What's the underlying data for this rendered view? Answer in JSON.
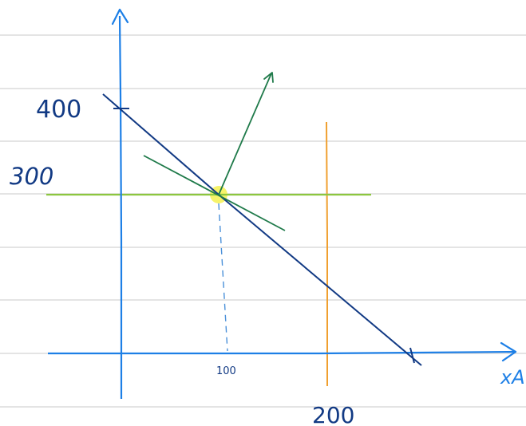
{
  "sketch": {
    "labels": {
      "y_400": "400",
      "y_300": "300",
      "x_100": "100",
      "x_200": "200",
      "x_axis": "xA"
    },
    "colors": {
      "ruled_lines": "#d4d4d4",
      "axes": "#1d7fe6",
      "constraint_line": "#123a84",
      "tangent_line": "#1f7a4a",
      "gradient_arrow": "#1f7a4a",
      "horizontal_line": "#8cc63f",
      "vertical_line": "#f0a030",
      "optimum_marker": "#f5f25a",
      "dashed_projection": "#4a90d9",
      "labels": "#123a84"
    }
  }
}
